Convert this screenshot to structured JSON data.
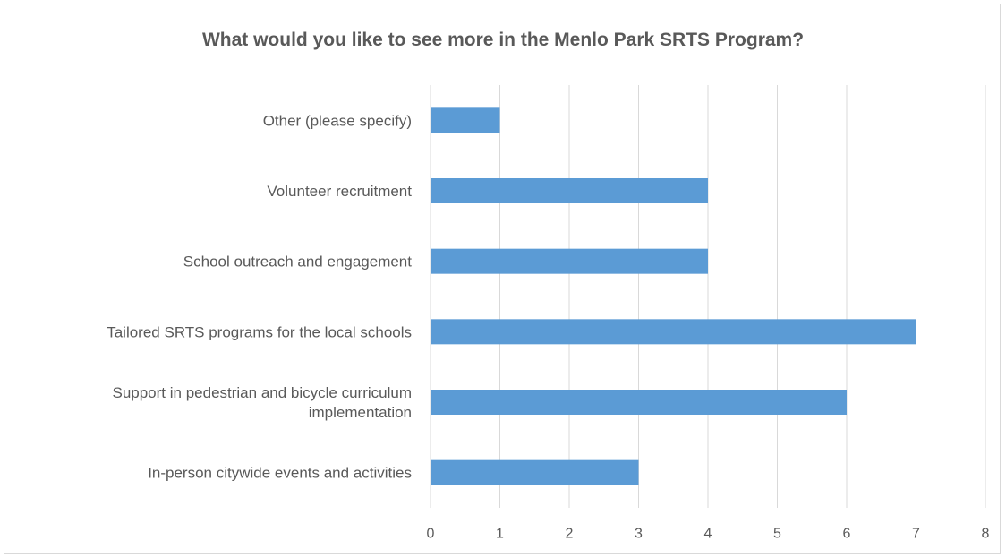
{
  "chart_data": {
    "type": "bar",
    "orientation": "horizontal",
    "title": "What would you like to see more in the Menlo Park SRTS Program?",
    "categories": [
      "In-person citywide events and activities",
      "Support in pedestrian and bicycle curriculum implementation",
      "Tailored SRTS programs for the local schools",
      "School outreach and engagement",
      "Volunteer recruitment",
      "Other (please specify)"
    ],
    "category_label_lines": [
      [
        "In-person citywide events and activities"
      ],
      [
        "Support in pedestrian and bicycle curriculum",
        "implementation"
      ],
      [
        "Tailored SRTS programs for the local schools"
      ],
      [
        "School outreach and engagement"
      ],
      [
        "Volunteer recruitment"
      ],
      [
        "Other (please specify)"
      ]
    ],
    "values": [
      3,
      6,
      7,
      4,
      4,
      1
    ],
    "xlim": [
      0,
      8
    ],
    "xticks": [
      0,
      1,
      2,
      3,
      4,
      5,
      6,
      7,
      8
    ],
    "xlabel": "",
    "ylabel": "",
    "grid": true,
    "bar_color": "#5b9bd5",
    "grid_color": "#d9d9d9",
    "text_color": "#595959"
  }
}
